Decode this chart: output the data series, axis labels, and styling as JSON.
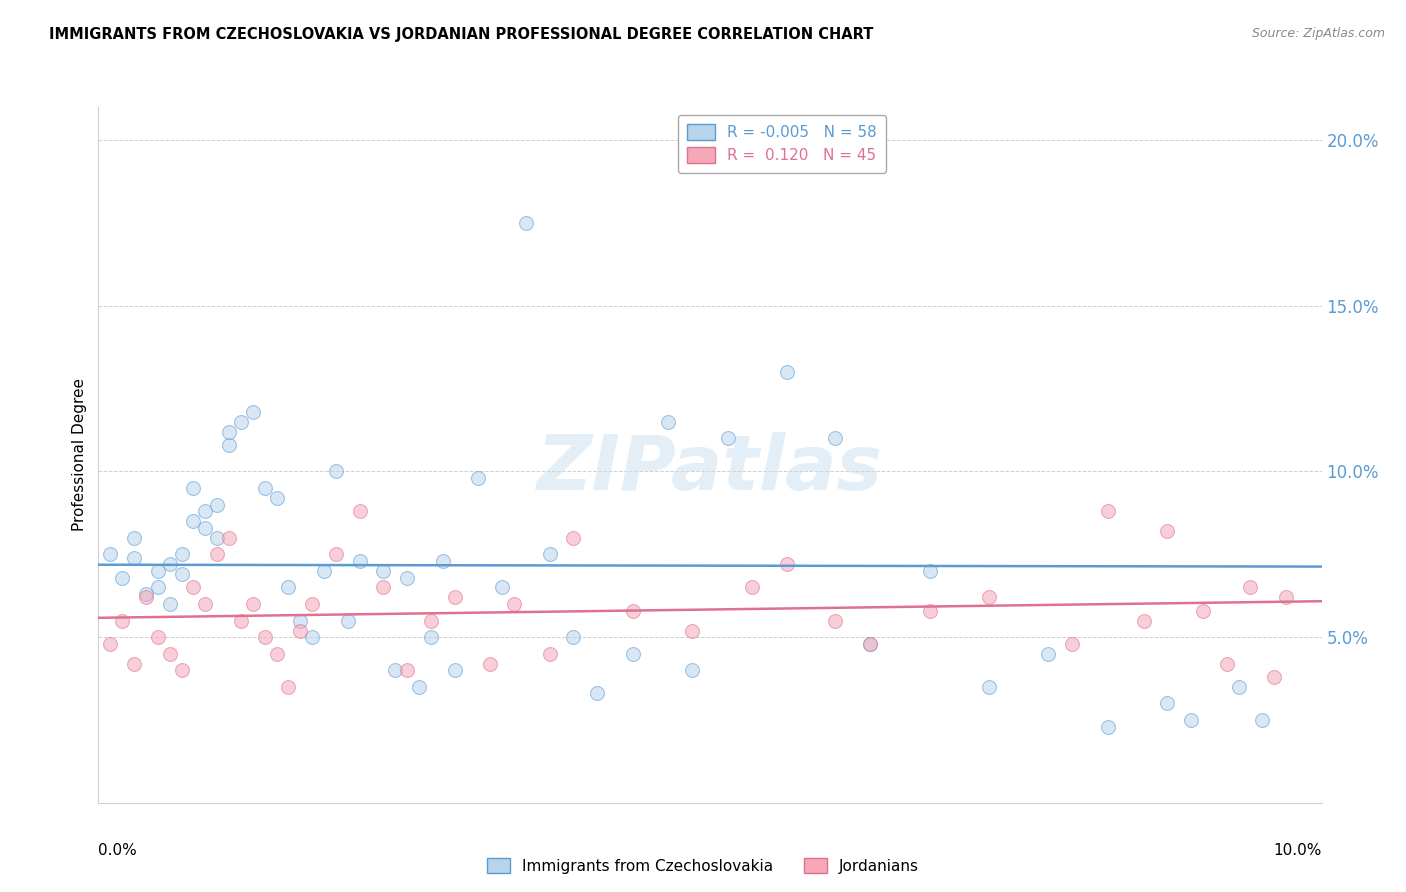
{
  "title": "IMMIGRANTS FROM CZECHOSLOVAKIA VS JORDANIAN PROFESSIONAL DEGREE CORRELATION CHART",
  "source": "Source: ZipAtlas.com",
  "ylabel": "Professional Degree",
  "r_blue": -0.005,
  "n_blue": 58,
  "r_pink": 0.12,
  "n_pink": 45,
  "color_blue": "#b8d4ea",
  "color_pink": "#f4a8b8",
  "line_color_blue": "#5b9bd5",
  "line_color_pink": "#e07090",
  "tick_color_blue": "#5b9bd5",
  "watermark": "ZIPatlas",
  "blue_x": [
    0.001,
    0.002,
    0.003,
    0.003,
    0.004,
    0.005,
    0.005,
    0.006,
    0.006,
    0.007,
    0.007,
    0.008,
    0.008,
    0.009,
    0.009,
    0.01,
    0.01,
    0.011,
    0.011,
    0.012,
    0.013,
    0.014,
    0.015,
    0.016,
    0.017,
    0.018,
    0.019,
    0.02,
    0.021,
    0.022,
    0.024,
    0.025,
    0.026,
    0.027,
    0.028,
    0.029,
    0.03,
    0.032,
    0.034,
    0.036,
    0.038,
    0.04,
    0.042,
    0.045,
    0.048,
    0.05,
    0.053,
    0.058,
    0.062,
    0.065,
    0.07,
    0.075,
    0.08,
    0.085,
    0.09,
    0.092,
    0.096,
    0.098
  ],
  "blue_y": [
    0.075,
    0.068,
    0.074,
    0.08,
    0.063,
    0.07,
    0.065,
    0.072,
    0.06,
    0.069,
    0.075,
    0.085,
    0.095,
    0.083,
    0.088,
    0.08,
    0.09,
    0.108,
    0.112,
    0.115,
    0.118,
    0.095,
    0.092,
    0.065,
    0.055,
    0.05,
    0.07,
    0.1,
    0.055,
    0.073,
    0.07,
    0.04,
    0.068,
    0.035,
    0.05,
    0.073,
    0.04,
    0.098,
    0.065,
    0.175,
    0.075,
    0.05,
    0.033,
    0.045,
    0.115,
    0.04,
    0.11,
    0.13,
    0.11,
    0.048,
    0.07,
    0.035,
    0.045,
    0.023,
    0.03,
    0.025,
    0.035,
    0.025
  ],
  "pink_x": [
    0.001,
    0.002,
    0.003,
    0.004,
    0.005,
    0.006,
    0.007,
    0.008,
    0.009,
    0.01,
    0.011,
    0.012,
    0.013,
    0.014,
    0.015,
    0.016,
    0.017,
    0.018,
    0.02,
    0.022,
    0.024,
    0.026,
    0.028,
    0.03,
    0.033,
    0.035,
    0.038,
    0.04,
    0.045,
    0.05,
    0.055,
    0.058,
    0.062,
    0.065,
    0.07,
    0.075,
    0.082,
    0.085,
    0.088,
    0.09,
    0.093,
    0.095,
    0.097,
    0.099,
    0.1
  ],
  "pink_y": [
    0.048,
    0.055,
    0.042,
    0.062,
    0.05,
    0.045,
    0.04,
    0.065,
    0.06,
    0.075,
    0.08,
    0.055,
    0.06,
    0.05,
    0.045,
    0.035,
    0.052,
    0.06,
    0.075,
    0.088,
    0.065,
    0.04,
    0.055,
    0.062,
    0.042,
    0.06,
    0.045,
    0.08,
    0.058,
    0.052,
    0.065,
    0.072,
    0.055,
    0.048,
    0.058,
    0.062,
    0.048,
    0.088,
    0.055,
    0.082,
    0.058,
    0.042,
    0.065,
    0.038,
    0.062
  ],
  "ylim_min": 0.0,
  "ylim_max": 0.21,
  "xlim_min": 0.0,
  "xlim_max": 0.103,
  "yticks": [
    0.05,
    0.1,
    0.15,
    0.2
  ],
  "ytick_labels": [
    "5.0%",
    "10.0%",
    "15.0%",
    "20.0%"
  ],
  "xtick_positions": [
    0.0,
    0.025,
    0.05,
    0.075,
    0.1
  ],
  "marker_size": 100,
  "alpha": 0.55,
  "legend_label_blue": "Immigrants from Czechoslovakia",
  "legend_label_pink": "Jordanians"
}
